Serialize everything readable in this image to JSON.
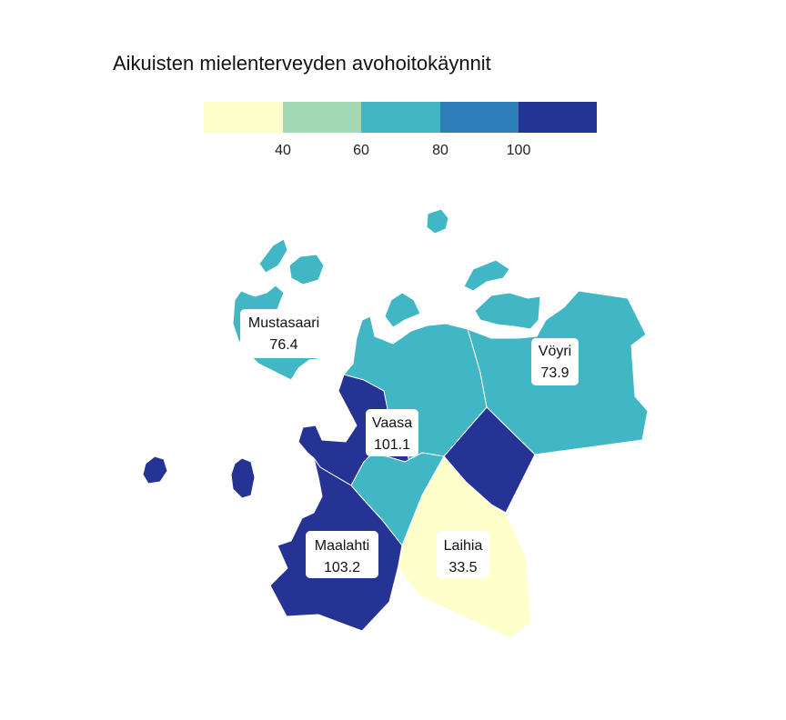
{
  "title": "Aikuisten mielenterveyden avohoitokäynnit",
  "colors": {
    "bin_0": "#ffffcc",
    "bin_1": "#a1dab4",
    "bin_2": "#41b6c4",
    "bin_3": "#2c7fb8",
    "bin_4": "#253494"
  },
  "legend": {
    "tick_labels": [
      "40",
      "60",
      "80",
      "100"
    ]
  },
  "regions": [
    {
      "name": "Mustasaari",
      "value": "76.4"
    },
    {
      "name": "Vöyri",
      "value": "73.9"
    },
    {
      "name": "Vaasa",
      "value": "101.1"
    },
    {
      "name": "Maalahti",
      "value": "103.2"
    },
    {
      "name": "Laihia",
      "value": "33.5"
    }
  ]
}
